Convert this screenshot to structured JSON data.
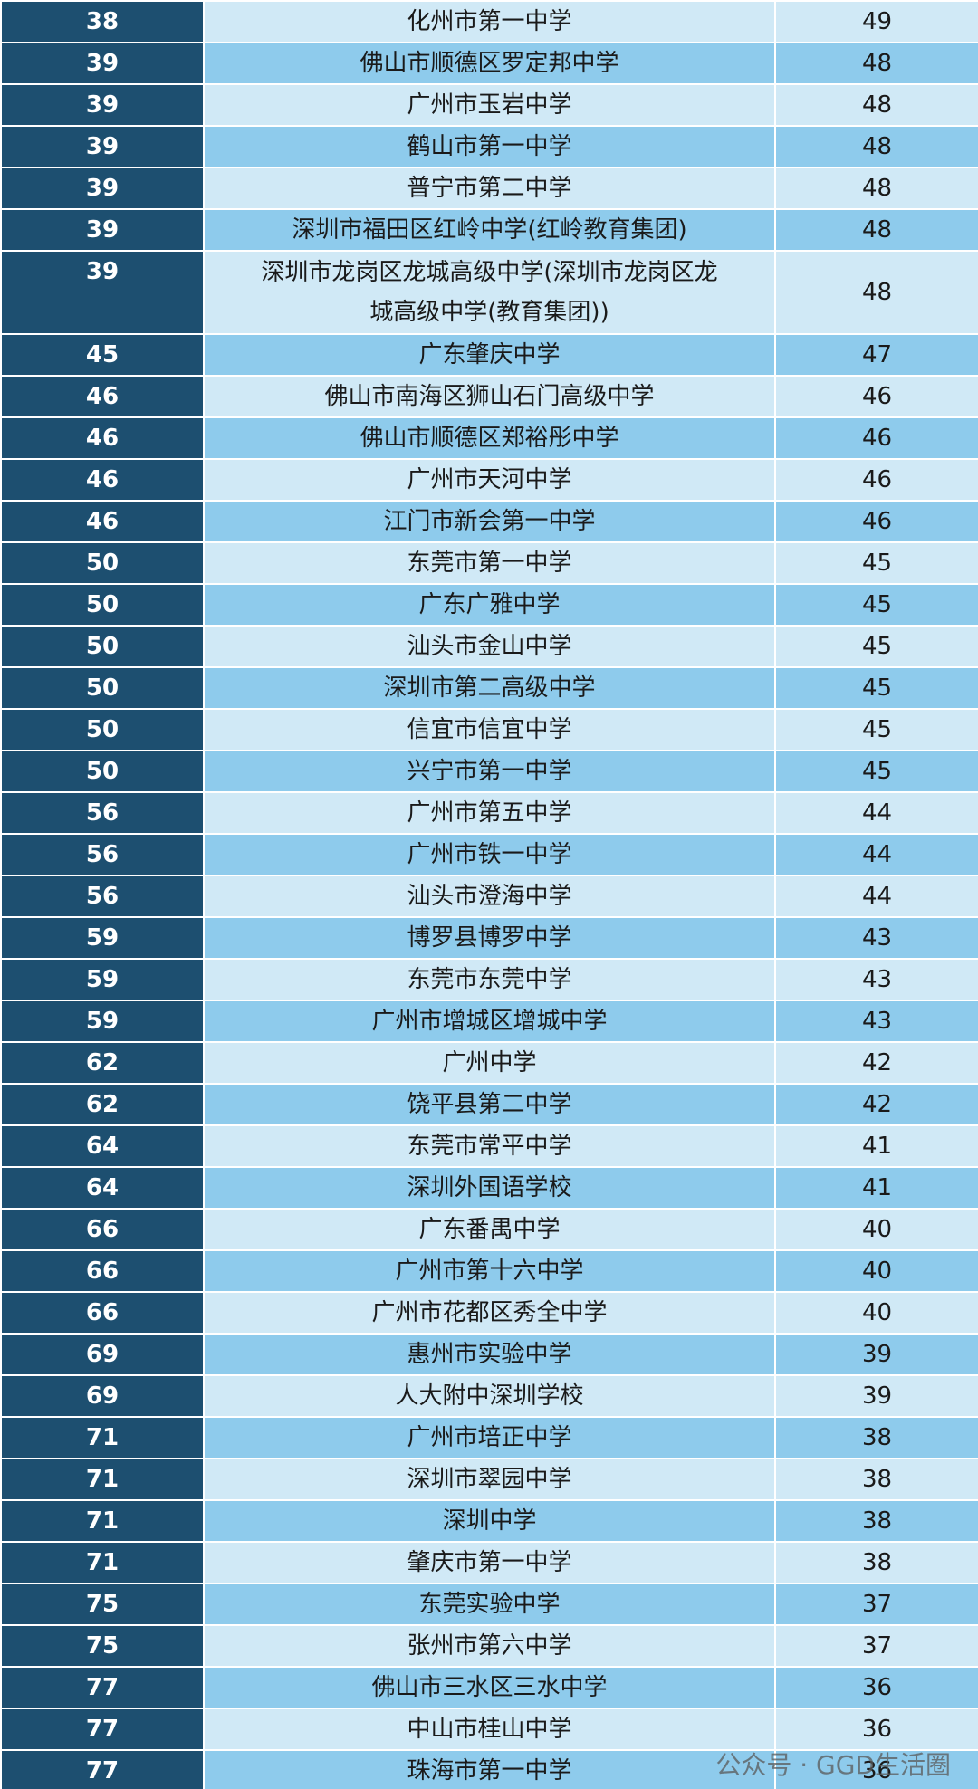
{
  "table": {
    "rows": [
      [
        38,
        "化州市第一中学",
        49
      ],
      [
        39,
        "佛山市顺德区罗定邦中学",
        48
      ],
      [
        39,
        "广州市玉岩中学",
        48
      ],
      [
        39,
        "鹤山市第一中学",
        48
      ],
      [
        39,
        "普宁市第二中学",
        48
      ],
      [
        39,
        "深圳市福田区红岭中学(红岭教育集团)",
        48
      ],
      [
        39,
        "深圳市龙岗区龙城高级中学(深圳市龙岗区龙城高级中学(教育集团))",
        48
      ],
      [
        45,
        "广东肇庆中学",
        47
      ],
      [
        46,
        "佛山市南海区狮山石门高级中学",
        46
      ],
      [
        46,
        "佛山市顺德区郑裕彤中学",
        46
      ],
      [
        46,
        "广州市天河中学",
        46
      ],
      [
        46,
        "江门市新会第一中学",
        46
      ],
      [
        50,
        "东莞市第一中学",
        45
      ],
      [
        50,
        "广东广雅中学",
        45
      ],
      [
        50,
        "汕头市金山中学",
        45
      ],
      [
        50,
        "深圳市第二高级中学",
        45
      ],
      [
        50,
        "信宜市信宜中学",
        45
      ],
      [
        50,
        "兴宁市第一中学",
        45
      ],
      [
        56,
        "广州市第五中学",
        44
      ],
      [
        56,
        "广州市铁一中学",
        44
      ],
      [
        56,
        "汕头市澄海中学",
        44
      ],
      [
        59,
        "博罗县博罗中学",
        43
      ],
      [
        59,
        "东莞市东莞中学",
        43
      ],
      [
        59,
        "广州市增城区增城中学",
        43
      ],
      [
        62,
        "广州中学",
        42
      ],
      [
        62,
        "饶平县第二中学",
        42
      ],
      [
        64,
        "东莞市常平中学",
        41
      ],
      [
        64,
        "深圳外国语学校",
        41
      ],
      [
        66,
        "广东番禺中学",
        40
      ],
      [
        66,
        "广州市第十六中学",
        40
      ],
      [
        66,
        "广州市花都区秀全中学",
        40
      ],
      [
        69,
        "惠州市实验中学",
        39
      ],
      [
        69,
        "人大附中深圳学校",
        39
      ],
      [
        71,
        "广州市培正中学",
        38
      ],
      [
        71,
        "深圳市翠园中学",
        38
      ],
      [
        71,
        "深圳中学",
        38
      ],
      [
        71,
        "肇庆市第一中学",
        38
      ],
      [
        75,
        "东莞实验中学",
        37
      ],
      [
        75,
        "张州市第六中学",
        37
      ],
      [
        77,
        "佛山市三水区三水中学",
        36
      ],
      [
        77,
        "中山市桂山中学",
        36
      ],
      [
        77,
        "珠海市第一中学",
        36
      ]
    ]
  },
  "watermark": "公众号 · GGD生活圈"
}
